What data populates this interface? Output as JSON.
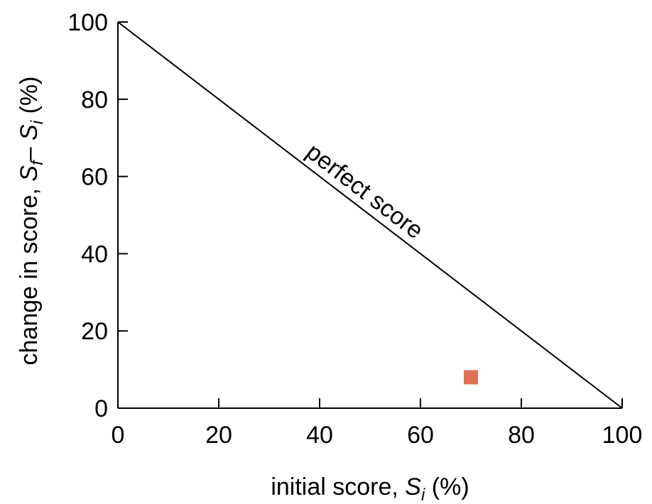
{
  "chart_data": {
    "type": "scatter",
    "xlim": [
      0,
      100
    ],
    "ylim": [
      0,
      100
    ],
    "xticks": [
      0,
      20,
      40,
      60,
      80,
      100
    ],
    "yticks": [
      0,
      20,
      40,
      60,
      80,
      100
    ],
    "grid": false,
    "xlabel": {
      "prefix": "initial score, ",
      "var": "S",
      "sub": "i",
      "suffix": " (%)"
    },
    "ylabel": {
      "prefix": "change in score, ",
      "var1": "S",
      "sub1": "f",
      "minus": "– ",
      "var2": "S",
      "sub2": "i",
      "suffix": " (%)"
    },
    "series": [
      {
        "color": "#e07058",
        "marker": "square",
        "points": [
          {
            "x": 70,
            "y": 8
          }
        ]
      }
    ],
    "reference_line": {
      "label": "perfect score",
      "points": [
        {
          "x": 0,
          "y": 100
        },
        {
          "x": 100,
          "y": 0
        }
      ],
      "color": "#000000"
    }
  }
}
